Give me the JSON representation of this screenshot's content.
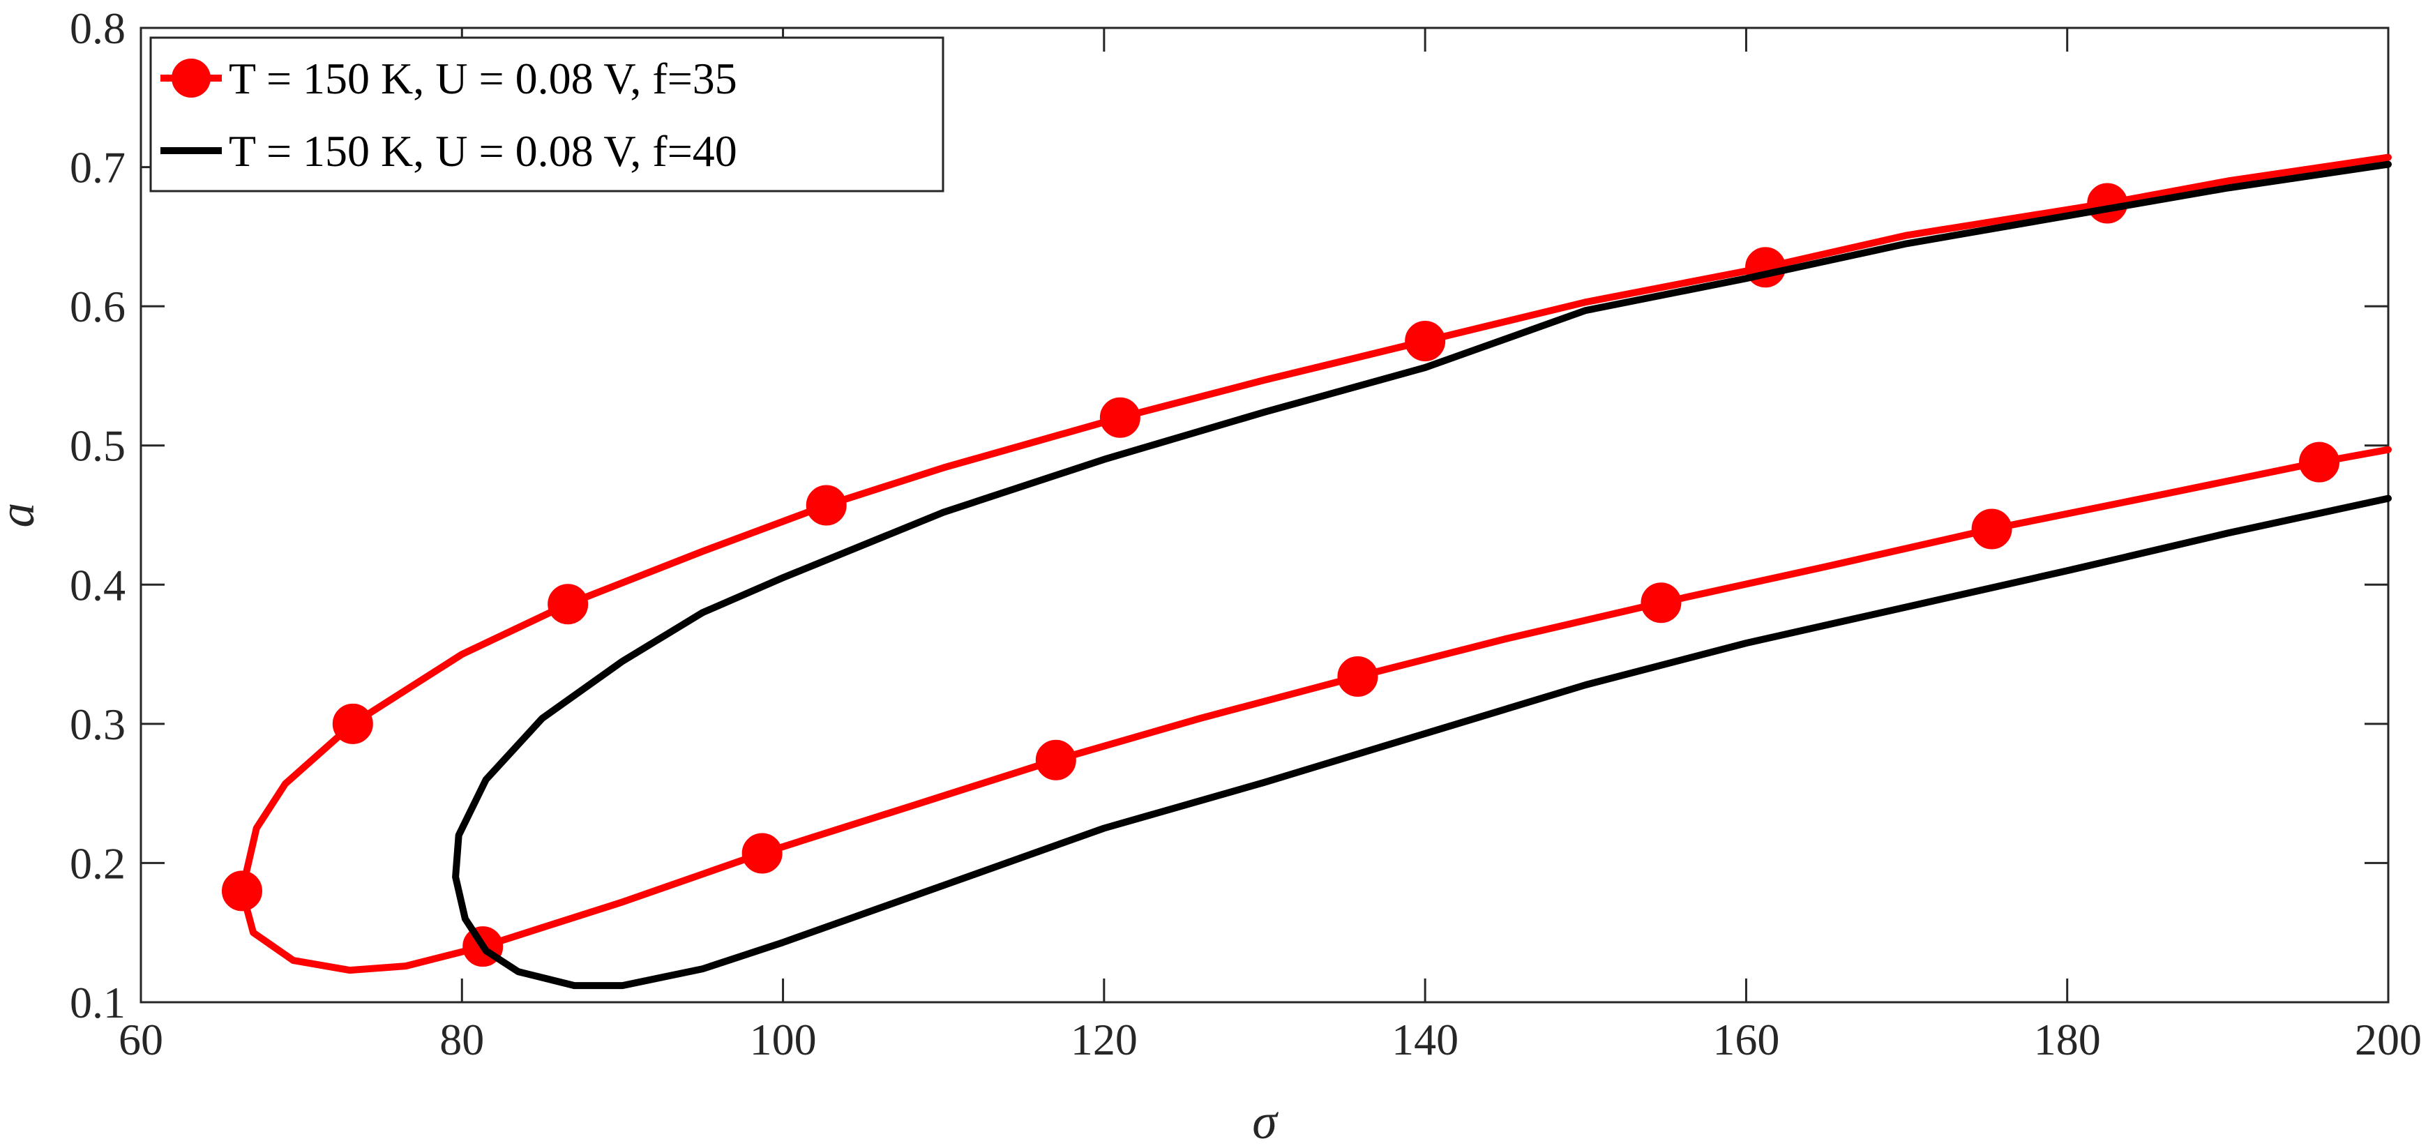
{
  "chart_data": {
    "type": "line",
    "title": "",
    "xlabel": "σ",
    "ylabel": "a",
    "xlim": [
      60,
      200
    ],
    "ylim": [
      0.1,
      0.8
    ],
    "xticks": [
      60,
      80,
      100,
      120,
      140,
      160,
      180,
      200
    ],
    "yticks": [
      0.1,
      0.2,
      0.3,
      0.4,
      0.5,
      0.6,
      0.7,
      0.8
    ],
    "xtick_labels": [
      "60",
      "80",
      "100",
      "120",
      "140",
      "160",
      "180",
      "200"
    ],
    "ytick_labels": [
      "0.1",
      "0.2",
      "0.3",
      "0.4",
      "0.5",
      "0.6",
      "0.7",
      "0.8"
    ],
    "grid": false,
    "legend_position": "top-left",
    "series": [
      {
        "name": "T = 150 K, U = 0.08 V, f=35",
        "color": "#ff0000",
        "marker": "circle",
        "points": [
          [
            200,
            0.707
          ],
          [
            190,
            0.69
          ],
          [
            182.5,
            0.674
          ],
          [
            170,
            0.651
          ],
          [
            161.2,
            0.628
          ],
          [
            150,
            0.603
          ],
          [
            140,
            0.575
          ],
          [
            130,
            0.547
          ],
          [
            121,
            0.52
          ],
          [
            110,
            0.484
          ],
          [
            102.7,
            0.457
          ],
          [
            95,
            0.424
          ],
          [
            86.6,
            0.386
          ],
          [
            80,
            0.35
          ],
          [
            73.2,
            0.3
          ],
          [
            69,
            0.257
          ],
          [
            67.2,
            0.225
          ],
          [
            66.3,
            0.18
          ],
          [
            67,
            0.15
          ],
          [
            69.5,
            0.13
          ],
          [
            73,
            0.123
          ],
          [
            76.5,
            0.126
          ],
          [
            81.3,
            0.14
          ],
          [
            90,
            0.172
          ],
          [
            98.7,
            0.207
          ],
          [
            108,
            0.241
          ],
          [
            117,
            0.274
          ],
          [
            126,
            0.304
          ],
          [
            135.8,
            0.334
          ],
          [
            145,
            0.361
          ],
          [
            154.7,
            0.387
          ],
          [
            165,
            0.413
          ],
          [
            175.3,
            0.44
          ],
          [
            186,
            0.465
          ],
          [
            195.7,
            0.488
          ],
          [
            200,
            0.497
          ]
        ],
        "marker_points": [
          [
            182.5,
            0.674
          ],
          [
            161.2,
            0.628
          ],
          [
            140,
            0.575
          ],
          [
            121,
            0.52
          ],
          [
            102.7,
            0.457
          ],
          [
            86.6,
            0.386
          ],
          [
            73.2,
            0.3
          ],
          [
            66.3,
            0.18
          ],
          [
            81.3,
            0.14
          ],
          [
            98.7,
            0.207
          ],
          [
            117,
            0.274
          ],
          [
            135.8,
            0.334
          ],
          [
            154.7,
            0.387
          ],
          [
            175.3,
            0.44
          ],
          [
            195.7,
            0.488
          ]
        ]
      },
      {
        "name": "T = 150 K, U = 0.08 V, f=40",
        "color": "#000000",
        "marker": "none",
        "points": [
          [
            200,
            0.702
          ],
          [
            190,
            0.685
          ],
          [
            180,
            0.665
          ],
          [
            170,
            0.645
          ],
          [
            160,
            0.62
          ],
          [
            150,
            0.597
          ],
          [
            140,
            0.556
          ],
          [
            130,
            0.524
          ],
          [
            120,
            0.49
          ],
          [
            110,
            0.452
          ],
          [
            100,
            0.405
          ],
          [
            95,
            0.38
          ],
          [
            90,
            0.345
          ],
          [
            85,
            0.304
          ],
          [
            81.5,
            0.26
          ],
          [
            79.8,
            0.22
          ],
          [
            79.6,
            0.19
          ],
          [
            80.2,
            0.16
          ],
          [
            81.5,
            0.137
          ],
          [
            83.5,
            0.122
          ],
          [
            87,
            0.112
          ],
          [
            90,
            0.112
          ],
          [
            95,
            0.124
          ],
          [
            100,
            0.143
          ],
          [
            110,
            0.184
          ],
          [
            120,
            0.225
          ],
          [
            130,
            0.258
          ],
          [
            140,
            0.293
          ],
          [
            150,
            0.328
          ],
          [
            160,
            0.358
          ],
          [
            170,
            0.384
          ],
          [
            180,
            0.41
          ],
          [
            190,
            0.437
          ],
          [
            200,
            0.462
          ]
        ],
        "marker_points": []
      }
    ]
  }
}
